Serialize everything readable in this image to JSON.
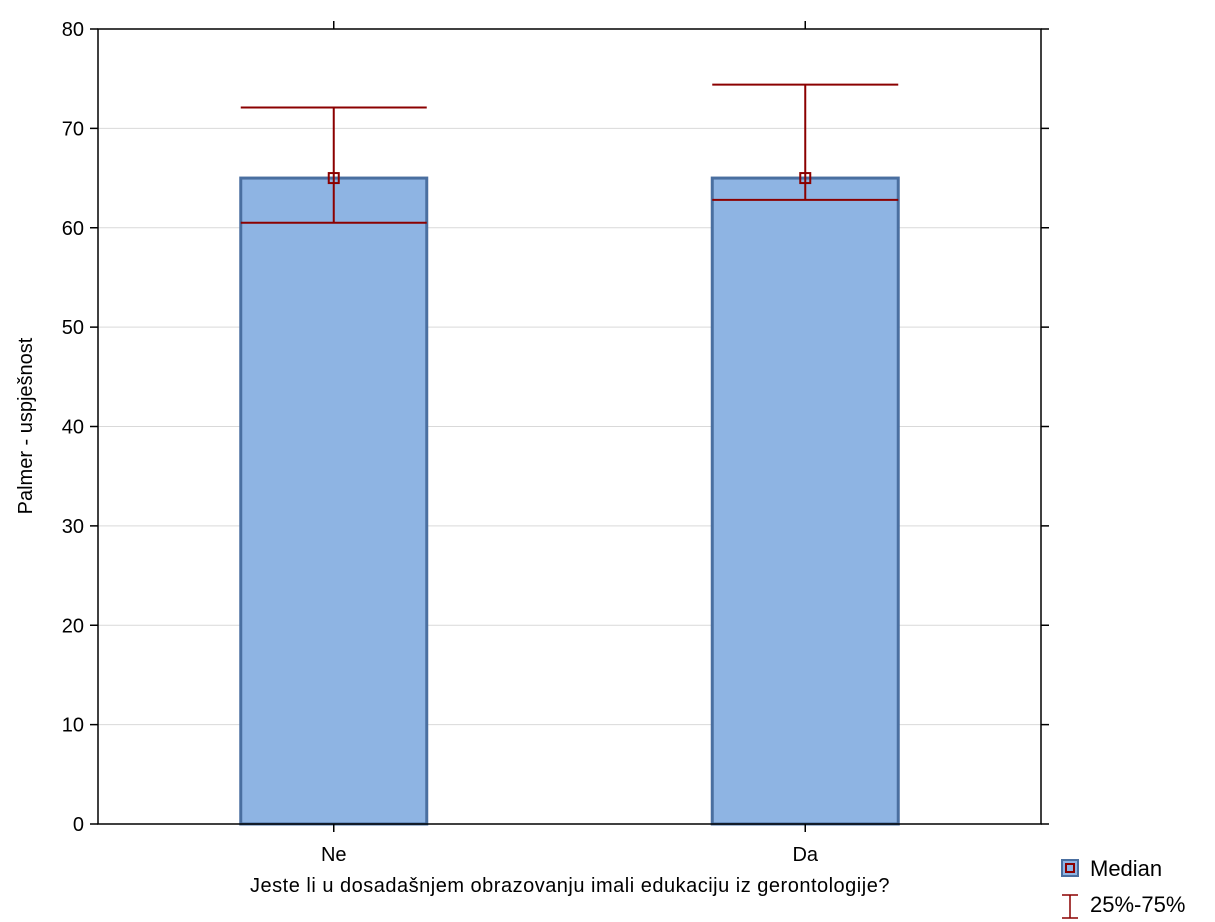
{
  "chart_data": {
    "type": "bar",
    "categories": [
      "Ne",
      "Da"
    ],
    "values": [
      65,
      65
    ],
    "whisker_low": [
      60.5,
      62.8
    ],
    "whisker_high": [
      72.1,
      74.4
    ],
    "xlabel": "Jeste li u dosadašnjem obrazovanju imali edukaciju iz gerontologije?",
    "ylabel": "Palmer - uspješnost",
    "ylim": [
      0,
      80
    ],
    "yticks": [
      0,
      10,
      20,
      30,
      40,
      50,
      60,
      70,
      80
    ],
    "grid": true,
    "legend": [
      {
        "label": "Median",
        "marker": "square"
      },
      {
        "label": "25%-75%",
        "marker": "whisker"
      }
    ],
    "legend_position": "bottom-right",
    "colors": {
      "bar_fill": "#8eb4e3",
      "bar_stroke": "#4a6fa0",
      "whisker": "#8b0000",
      "grid": "#d9d9d9"
    }
  }
}
